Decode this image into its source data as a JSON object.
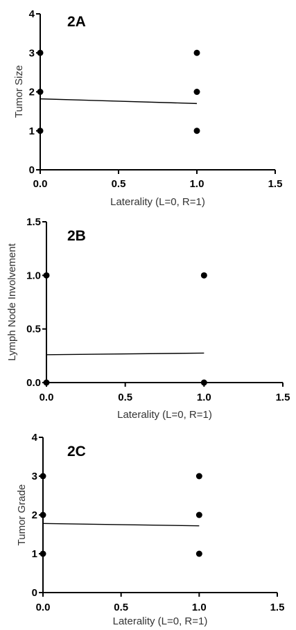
{
  "chart_data": [
    {
      "type": "scatter",
      "title": "2A",
      "xlabel": "Laterality (L=0, R=1)",
      "ylabel": "Tumor Size",
      "xlim": [
        0,
        1.5
      ],
      "ylim": [
        0,
        4
      ],
      "xticks": [
        "0.0",
        "0.5",
        "1.0",
        "1.5"
      ],
      "xtick_values": [
        0,
        0.5,
        1.0,
        1.5
      ],
      "yticks": [
        "0",
        "1",
        "2",
        "3",
        "4"
      ],
      "ytick_values": [
        0,
        1,
        2,
        3,
        4
      ],
      "points": [
        {
          "x": 0,
          "y": 1
        },
        {
          "x": 0,
          "y": 2
        },
        {
          "x": 0,
          "y": 3
        },
        {
          "x": 1,
          "y": 1
        },
        {
          "x": 1,
          "y": 2
        },
        {
          "x": 1,
          "y": 3
        }
      ],
      "fit_line": [
        {
          "x": 0,
          "y": 1.82
        },
        {
          "x": 1,
          "y": 1.7
        }
      ],
      "grid": false
    },
    {
      "type": "scatter",
      "title": "2B",
      "xlabel": "Laterality (L=0, R=1)",
      "ylabel": "Lymph Node Involvement",
      "xlim": [
        0,
        1.5
      ],
      "ylim": [
        0,
        1.5
      ],
      "xticks": [
        "0.0",
        "0.5",
        "1.0",
        "1.5"
      ],
      "xtick_values": [
        0,
        0.5,
        1.0,
        1.5
      ],
      "yticks": [
        "0.0",
        "0.5",
        "1.0",
        "1.5"
      ],
      "ytick_values": [
        0,
        0.5,
        1.0,
        1.5
      ],
      "points": [
        {
          "x": 0,
          "y": 0
        },
        {
          "x": 0,
          "y": 1
        },
        {
          "x": 1,
          "y": 0
        },
        {
          "x": 1,
          "y": 1
        }
      ],
      "fit_line": [
        {
          "x": 0,
          "y": 0.26
        },
        {
          "x": 1,
          "y": 0.275
        }
      ],
      "grid": false
    },
    {
      "type": "scatter",
      "title": "2C",
      "xlabel": "Laterality (L=0, R=1)",
      "ylabel": "Tumor Grade",
      "xlim": [
        0,
        1.5
      ],
      "ylim": [
        0,
        4
      ],
      "xticks": [
        "0.0",
        "0.5",
        "1.0",
        "1.5"
      ],
      "xtick_values": [
        0,
        0.5,
        1.0,
        1.5
      ],
      "yticks": [
        "0",
        "1",
        "2",
        "3",
        "4"
      ],
      "ytick_values": [
        0,
        1,
        2,
        3,
        4
      ],
      "points": [
        {
          "x": 0,
          "y": 1
        },
        {
          "x": 0,
          "y": 2
        },
        {
          "x": 0,
          "y": 3
        },
        {
          "x": 1,
          "y": 1
        },
        {
          "x": 1,
          "y": 2
        },
        {
          "x": 1,
          "y": 3
        }
      ],
      "fit_line": [
        {
          "x": 0,
          "y": 1.78
        },
        {
          "x": 1,
          "y": 1.72
        }
      ],
      "grid": false
    }
  ]
}
